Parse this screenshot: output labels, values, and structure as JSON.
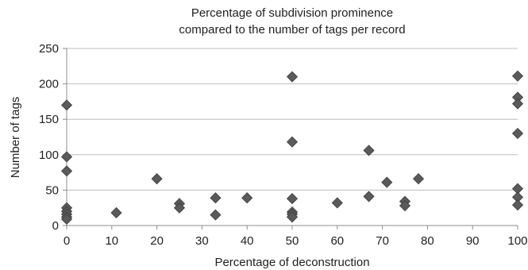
{
  "chart_data": {
    "type": "scatter",
    "title": "Percentage of subdivision prominence",
    "subtitle": "compared to the number of tags per record",
    "xlabel": "Percentage of deconstruction",
    "ylabel": "Number of tags",
    "xlim": [
      0,
      100
    ],
    "ylim": [
      0,
      250
    ],
    "xticks": [
      "0",
      "10",
      "20",
      "30",
      "40",
      "50",
      "60",
      "70",
      "80",
      "90",
      "100"
    ],
    "yticks": [
      "0",
      "50",
      "100",
      "150",
      "200",
      "250"
    ],
    "grid": "horizontal",
    "legend": "none",
    "marker": "diamond",
    "color": "#5a5a5a",
    "points": [
      {
        "x": 0,
        "y": 170
      },
      {
        "x": 0,
        "y": 97
      },
      {
        "x": 0,
        "y": 77
      },
      {
        "x": 0,
        "y": 25
      },
      {
        "x": 0,
        "y": 20
      },
      {
        "x": 0,
        "y": 16
      },
      {
        "x": 0,
        "y": 12
      },
      {
        "x": 0,
        "y": 9
      },
      {
        "x": 11,
        "y": 18
      },
      {
        "x": 20,
        "y": 66
      },
      {
        "x": 25,
        "y": 31
      },
      {
        "x": 25,
        "y": 25
      },
      {
        "x": 33,
        "y": 39
      },
      {
        "x": 33,
        "y": 15
      },
      {
        "x": 40,
        "y": 39
      },
      {
        "x": 50,
        "y": 210
      },
      {
        "x": 50,
        "y": 118
      },
      {
        "x": 50,
        "y": 38
      },
      {
        "x": 50,
        "y": 19
      },
      {
        "x": 50,
        "y": 16
      },
      {
        "x": 50,
        "y": 12
      },
      {
        "x": 60,
        "y": 32
      },
      {
        "x": 67,
        "y": 106
      },
      {
        "x": 67,
        "y": 41
      },
      {
        "x": 71,
        "y": 61
      },
      {
        "x": 75,
        "y": 34
      },
      {
        "x": 75,
        "y": 28
      },
      {
        "x": 78,
        "y": 66
      },
      {
        "x": 100,
        "y": 211
      },
      {
        "x": 100,
        "y": 181
      },
      {
        "x": 100,
        "y": 172
      },
      {
        "x": 100,
        "y": 130
      },
      {
        "x": 100,
        "y": 52
      },
      {
        "x": 100,
        "y": 40
      },
      {
        "x": 100,
        "y": 29
      }
    ]
  }
}
